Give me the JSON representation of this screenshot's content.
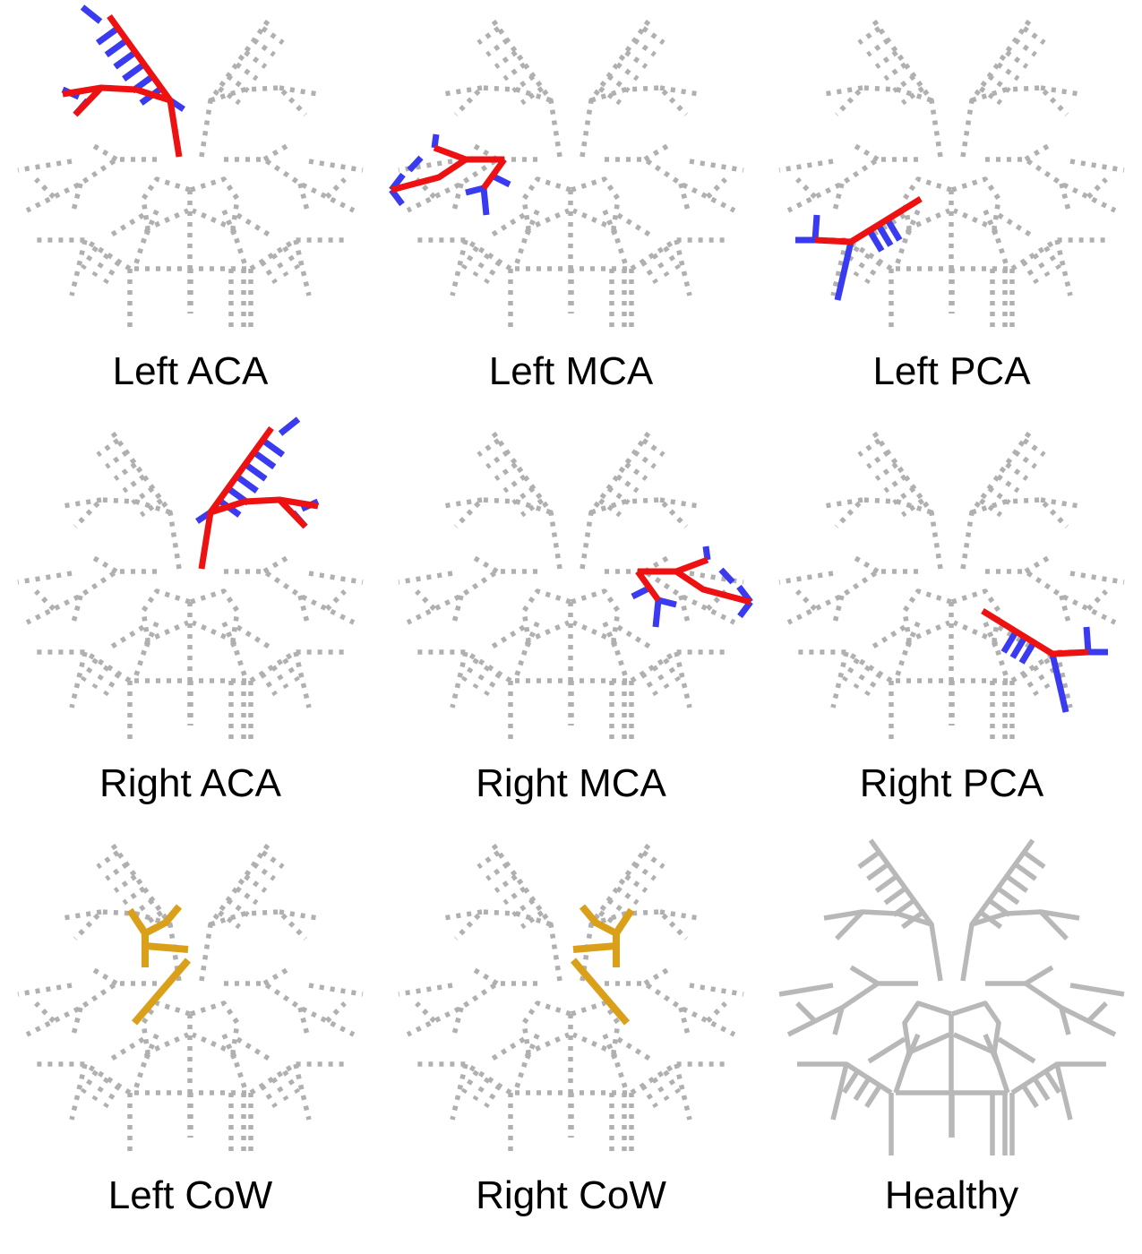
{
  "panels": [
    {
      "label": "Left ACA",
      "style": "dotted",
      "highlight": "left-aca"
    },
    {
      "label": "Left MCA",
      "style": "dotted",
      "highlight": "left-mca"
    },
    {
      "label": "Left PCA",
      "style": "dotted",
      "highlight": "left-pca"
    },
    {
      "label": "Right ACA",
      "style": "dotted",
      "highlight": "right-aca"
    },
    {
      "label": "Right MCA",
      "style": "dotted",
      "highlight": "right-mca"
    },
    {
      "label": "Right PCA",
      "style": "dotted",
      "highlight": "right-pca"
    },
    {
      "label": "Left CoW",
      "style": "dotted",
      "highlight": "left-cow"
    },
    {
      "label": "Right CoW",
      "style": "dotted",
      "highlight": "right-cow"
    },
    {
      "label": "Healthy",
      "style": "solid",
      "highlight": "none"
    }
  ],
  "colors": {
    "tree": "#b0b0b0",
    "trunk": "#ee1111",
    "leaf": "#3a3af0",
    "cow": "#daa01a"
  }
}
